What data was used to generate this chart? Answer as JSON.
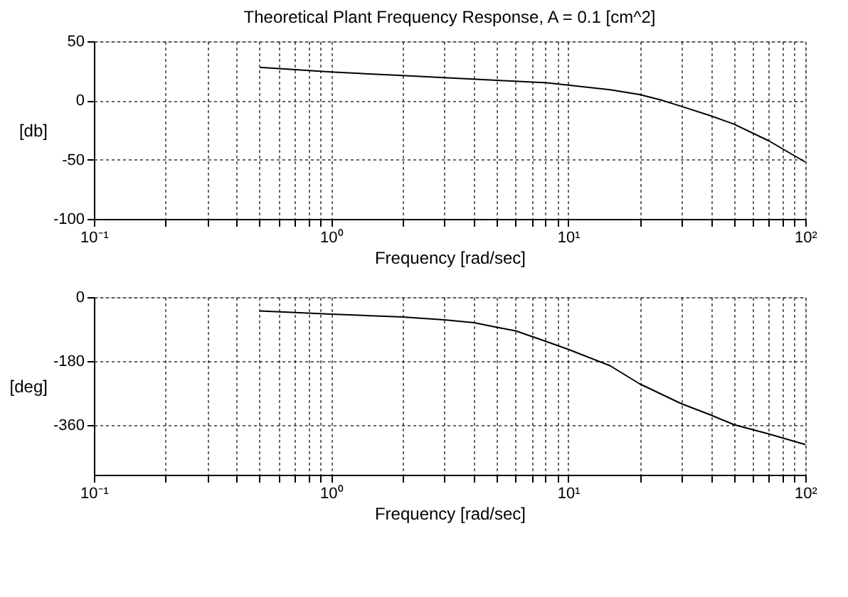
{
  "chart_data": [
    {
      "type": "line",
      "title": "Theoretical Plant Frequency Response, A = 0.1 [cm^2]",
      "xlabel": "Frequency [rad/sec]",
      "ylabel": "[db]",
      "log": "x",
      "grid": true,
      "line_style": "solid",
      "marker": "none",
      "x": [
        0.5,
        1,
        2,
        5,
        8,
        10,
        15,
        20,
        25,
        30,
        40,
        50,
        70,
        100
      ],
      "series": [
        {
          "color": "#000000",
          "values": [
            28,
            24,
            21,
            17,
            15,
            13,
            9,
            5,
            0,
            -5,
            -13,
            -20,
            -34,
            -52
          ]
        }
      ],
      "xlim": [
        0.1,
        100
      ],
      "ylim": [
        -100,
        50
      ],
      "yticks": [
        -100,
        -50,
        0,
        50
      ],
      "xticks": [
        {
          "value": 0.1,
          "label": "10⁻¹"
        },
        {
          "value": 0.2,
          "label": null
        },
        {
          "value": 0.3,
          "label": null
        },
        {
          "value": 0.4,
          "label": null
        },
        {
          "value": 0.5,
          "label": null
        },
        {
          "value": 0.6,
          "label": null
        },
        {
          "value": 0.7,
          "label": null
        },
        {
          "value": 0.8,
          "label": null
        },
        {
          "value": 0.9,
          "label": null
        },
        {
          "value": 1,
          "label": "10⁰"
        },
        {
          "value": 2,
          "label": null
        },
        {
          "value": 3,
          "label": null
        },
        {
          "value": 4,
          "label": null
        },
        {
          "value": 5,
          "label": null
        },
        {
          "value": 6,
          "label": null
        },
        {
          "value": 7,
          "label": null
        },
        {
          "value": 8,
          "label": null
        },
        {
          "value": 9,
          "label": null
        },
        {
          "value": 10,
          "label": "10¹"
        },
        {
          "value": 20,
          "label": null
        },
        {
          "value": 30,
          "label": null
        },
        {
          "value": 40,
          "label": null
        },
        {
          "value": 50,
          "label": null
        },
        {
          "value": 60,
          "label": null
        },
        {
          "value": 70,
          "label": null
        },
        {
          "value": 80,
          "label": null
        },
        {
          "value": 90,
          "label": null
        },
        {
          "value": 100,
          "label": "10²"
        }
      ]
    },
    {
      "type": "line",
      "xlabel": "Frequency [rad/sec]",
      "ylabel": "[deg]",
      "log": "x",
      "grid": true,
      "line_style": "solid",
      "marker": "none",
      "x": [
        0.5,
        1,
        2,
        3,
        4,
        5,
        6,
        8,
        10,
        15,
        20,
        30,
        40,
        50,
        70,
        100
      ],
      "series": [
        {
          "color": "#000000",
          "values": [
            -39,
            -48,
            -56,
            -64,
            -72,
            -85,
            -95,
            -124,
            -147,
            -193,
            -244,
            -300,
            -332,
            -359,
            -385,
            -415
          ]
        }
      ],
      "xlim": [
        0.1,
        100
      ],
      "ylim": [
        -500,
        0
      ],
      "yticks": [
        -360,
        -180,
        0
      ],
      "xticks": [
        {
          "value": 0.1,
          "label": "10⁻¹"
        },
        {
          "value": 0.2,
          "label": null
        },
        {
          "value": 0.3,
          "label": null
        },
        {
          "value": 0.4,
          "label": null
        },
        {
          "value": 0.5,
          "label": null
        },
        {
          "value": 0.6,
          "label": null
        },
        {
          "value": 0.7,
          "label": null
        },
        {
          "value": 0.8,
          "label": null
        },
        {
          "value": 0.9,
          "label": null
        },
        {
          "value": 1,
          "label": "10⁰"
        },
        {
          "value": 2,
          "label": null
        },
        {
          "value": 3,
          "label": null
        },
        {
          "value": 4,
          "label": null
        },
        {
          "value": 5,
          "label": null
        },
        {
          "value": 6,
          "label": null
        },
        {
          "value": 7,
          "label": null
        },
        {
          "value": 8,
          "label": null
        },
        {
          "value": 9,
          "label": null
        },
        {
          "value": 10,
          "label": "10¹"
        },
        {
          "value": 20,
          "label": null
        },
        {
          "value": 30,
          "label": null
        },
        {
          "value": 40,
          "label": null
        },
        {
          "value": 50,
          "label": null
        },
        {
          "value": 60,
          "label": null
        },
        {
          "value": 70,
          "label": null
        },
        {
          "value": 80,
          "label": null
        },
        {
          "value": 90,
          "label": null
        },
        {
          "value": 100,
          "label": "10²"
        }
      ]
    }
  ]
}
